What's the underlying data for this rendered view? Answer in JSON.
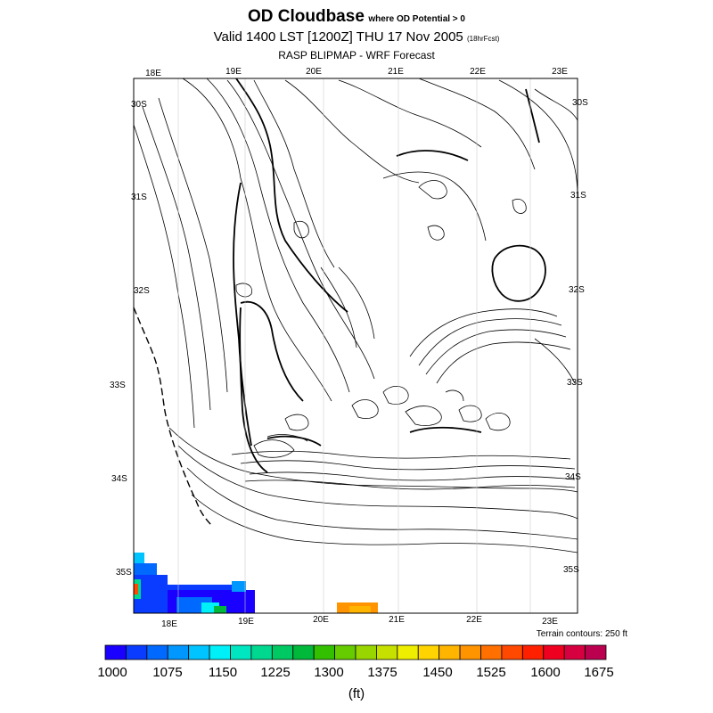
{
  "title": {
    "main": "OD Cloudbase",
    "qualifier": "where OD Potential > 0",
    "valid": "Valid 1400 LST [1200Z] THU 17 Nov 2005",
    "forecast_hours": "(18hrFcst)",
    "source": "RASP BLIPMAP - WRF Forecast"
  },
  "map": {
    "lon_labels_top": [
      "18E",
      "19E",
      "20E",
      "21E",
      "22E",
      "23E"
    ],
    "lon_labels_bottom": [
      "18E",
      "19E",
      "20E",
      "21E",
      "22E",
      "23E"
    ],
    "lat_labels_left": [
      "30S",
      "31S",
      "32S",
      "33S",
      "34S",
      "35S"
    ],
    "lat_labels_right": [
      "30S",
      "31S",
      "32S",
      "33S",
      "34S",
      "35S"
    ],
    "terrain_note": "Terrain contours: 250 ft"
  },
  "colorbar": {
    "tick_labels": [
      "1000",
      "1075",
      "1150",
      "1225",
      "1300",
      "1375",
      "1450",
      "1525",
      "1600",
      "1675"
    ],
    "units": "(ft)",
    "colors": [
      "#1a00ff",
      "#0a3cff",
      "#0069ff",
      "#0097ff",
      "#00c4ff",
      "#00f0f8",
      "#00e6c0",
      "#00d890",
      "#00c862",
      "#00b83a",
      "#33c000",
      "#66cc00",
      "#99d600",
      "#c6e000",
      "#eeee00",
      "#ffd400",
      "#ffb400",
      "#ff9400",
      "#ff7000",
      "#ff4800",
      "#ff2000",
      "#f00020",
      "#d60040",
      "#bb0050"
    ]
  }
}
